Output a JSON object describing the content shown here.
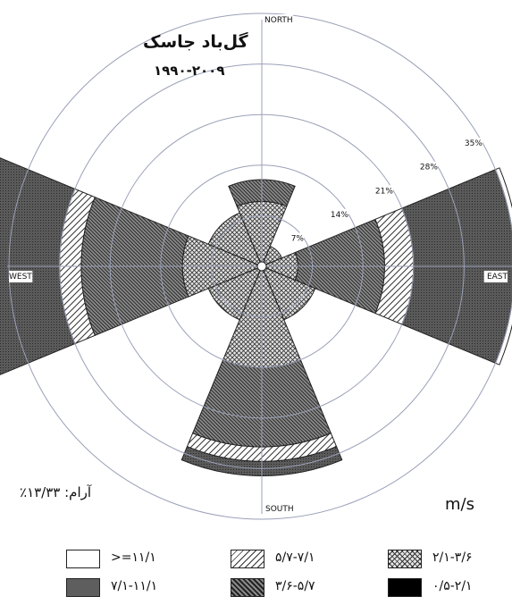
{
  "title": "گل‌باد جاسک",
  "period": "۱۹۹۰-۲۰۰۹",
  "calm": "آرام: ۱۳/۳۳٪",
  "units": "m/s",
  "chart_data": {
    "type": "wind-rose",
    "direction_labels": {
      "north": "NORTH",
      "east": "EAST",
      "south": "SOUTH",
      "west": "WEST"
    },
    "radial_ticks": [
      {
        "value": 7,
        "label": "7%"
      },
      {
        "value": 14,
        "label": "14%"
      },
      {
        "value": 21,
        "label": "21%"
      },
      {
        "value": 28,
        "label": "28%"
      },
      {
        "value": 35,
        "label": "35%"
      }
    ],
    "max_percent": 35,
    "speed_classes": [
      {
        "label": "۰/۵-۲/۱",
        "fill": "solid-black"
      },
      {
        "label": "۲/۱-۳/۶",
        "fill": "crosshatch"
      },
      {
        "label": "۳/۶-۵/۷",
        "fill": "backslash"
      },
      {
        "label": "۵/۷-۷/۱",
        "fill": "slash"
      },
      {
        "label": "۷/۱-۱۱/۱",
        "fill": "dots"
      },
      {
        "label": ">=۱۱/۱",
        "fill": "empty"
      }
    ],
    "sector_width_deg": 45,
    "sectors": [
      {
        "dir": "N",
        "angle": 0,
        "bands": [
          [
            0,
            9
          ],
          [
            9,
            12
          ]
        ]
      },
      {
        "dir": "NE",
        "angle": 45,
        "bands": [
          [
            0,
            3
          ]
        ]
      },
      {
        "dir": "E",
        "angle": 90,
        "bands": [
          [
            0,
            5
          ],
          [
            5,
            17
          ],
          [
            17,
            21
          ],
          [
            21,
            35
          ],
          [
            35,
            35.6
          ]
        ]
      },
      {
        "dir": "SE",
        "angle": 135,
        "bands": [
          [
            0,
            8
          ]
        ]
      },
      {
        "dir": "S",
        "angle": 180,
        "bands": [
          [
            0,
            14
          ],
          [
            14,
            25
          ],
          [
            25,
            27
          ],
          [
            27,
            29
          ]
        ]
      },
      {
        "dir": "SW",
        "angle": 225,
        "bands": [
          [
            0,
            8
          ]
        ]
      },
      {
        "dir": "W",
        "angle": 270,
        "bands": [
          [
            0,
            11
          ],
          [
            11,
            25
          ],
          [
            25,
            28
          ],
          [
            28,
            40
          ]
        ]
      },
      {
        "dir": "NW",
        "angle": 315,
        "bands": [
          [
            0,
            8
          ]
        ]
      }
    ]
  }
}
